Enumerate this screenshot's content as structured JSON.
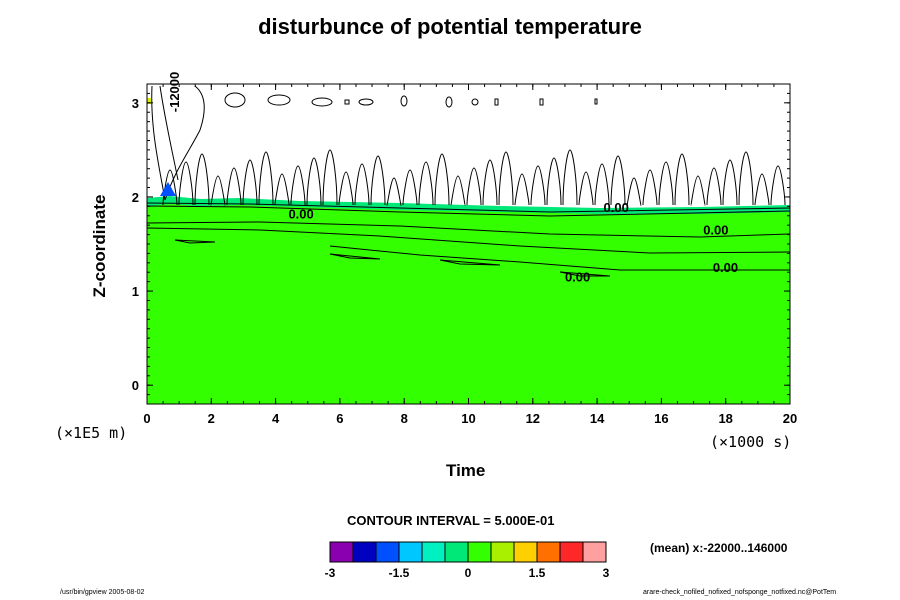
{
  "title": "disturbunce of potential temperature",
  "chart_data": {
    "type": "contour",
    "xlabel": "Time",
    "ylabel": "Z-coordinate",
    "x_scale_label": "(×1000 s)",
    "y_scale_label": "(×1E5 m)",
    "xlim": [
      0,
      20
    ],
    "ylim": [
      -0.2,
      3.2
    ],
    "x_ticks": [
      "0",
      "2",
      "4",
      "6",
      "8",
      "10",
      "12",
      "14",
      "16",
      "18",
      "20"
    ],
    "y_ticks": [
      "0",
      "1",
      "2",
      "3"
    ],
    "contour_labels": [
      {
        "text": "0.00",
        "x": 4.4,
        "y": 1.77
      },
      {
        "text": "0.00",
        "x": 14.2,
        "y": 1.84
      },
      {
        "text": "0.00",
        "x": 17.3,
        "y": 1.6
      },
      {
        "text": "0.00",
        "x": 17.6,
        "y": 1.2
      },
      {
        "text": "0.00",
        "x": 13.0,
        "y": 1.1
      },
      {
        "text": "-12000",
        "x": 1.0,
        "y": 2.9
      }
    ],
    "contour_interval": "CONTOUR INTERVAL = 5.000E-01",
    "mean_note": "(mean) x:-22000..146000",
    "colorbar": {
      "levels": [
        -3,
        -2.5,
        -2,
        -1.5,
        -1,
        -0.5,
        0,
        0.5,
        1,
        1.5,
        2,
        2.5,
        3
      ],
      "tick_labels": [
        "-3",
        "-1.5",
        "0",
        "1.5",
        "3"
      ],
      "colors": [
        "#8a00b0",
        "#0000c0",
        "#0050ff",
        "#00c8ff",
        "#00f0c0",
        "#00e878",
        "#33ff00",
        "#a8f000",
        "#ffd000",
        "#ff7000",
        "#ff2828",
        "#ffa0a0"
      ]
    }
  },
  "footer_left": "/usr/bin/gpview 2005-08-02",
  "footer_right": "arare-check_nofiled_nofixed_nofsponge_notfixed.nc@PotTem"
}
